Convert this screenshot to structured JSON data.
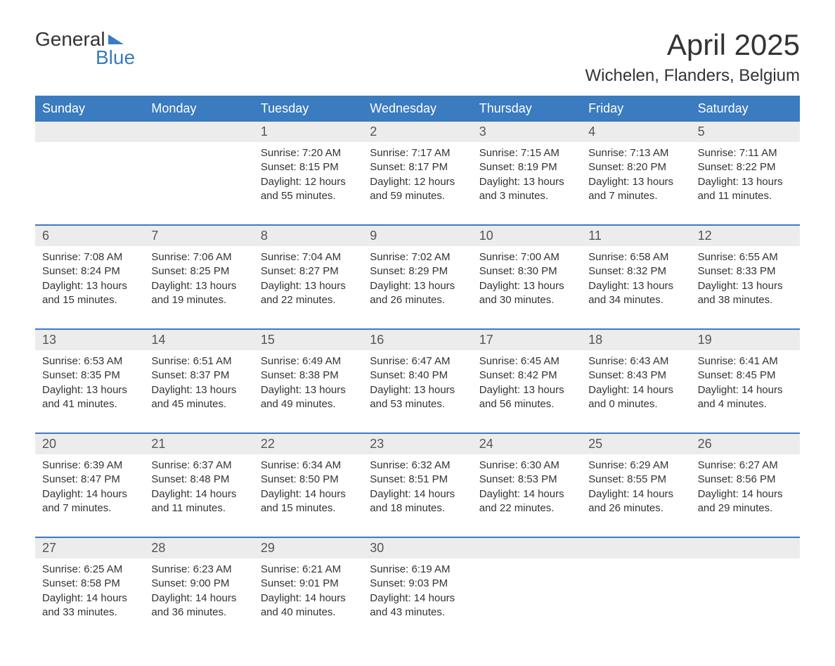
{
  "logo": {
    "part1": "General",
    "part2": "Blue"
  },
  "title": "April 2025",
  "location": "Wichelen, Flanders, Belgium",
  "colors": {
    "header_bg": "#3b7bbf",
    "header_text": "#ffffff",
    "daynum_bg": "#ececec",
    "body_text": "#333333",
    "logo_blue": "#3b7bbf"
  },
  "layout": {
    "columns": 7,
    "title_fontsize": 42,
    "location_fontsize": 24,
    "header_fontsize": 18,
    "daynum_fontsize": 18,
    "cell_fontsize": 15
  },
  "day_headers": [
    "Sunday",
    "Monday",
    "Tuesday",
    "Wednesday",
    "Thursday",
    "Friday",
    "Saturday"
  ],
  "weeks": [
    {
      "nums": [
        "",
        "",
        "1",
        "2",
        "3",
        "4",
        "5"
      ],
      "cells": [
        {},
        {},
        {
          "sunrise": "Sunrise: 7:20 AM",
          "sunset": "Sunset: 8:15 PM",
          "daylight": "Daylight: 12 hours and 55 minutes."
        },
        {
          "sunrise": "Sunrise: 7:17 AM",
          "sunset": "Sunset: 8:17 PM",
          "daylight": "Daylight: 12 hours and 59 minutes."
        },
        {
          "sunrise": "Sunrise: 7:15 AM",
          "sunset": "Sunset: 8:19 PM",
          "daylight": "Daylight: 13 hours and 3 minutes."
        },
        {
          "sunrise": "Sunrise: 7:13 AM",
          "sunset": "Sunset: 8:20 PM",
          "daylight": "Daylight: 13 hours and 7 minutes."
        },
        {
          "sunrise": "Sunrise: 7:11 AM",
          "sunset": "Sunset: 8:22 PM",
          "daylight": "Daylight: 13 hours and 11 minutes."
        }
      ]
    },
    {
      "nums": [
        "6",
        "7",
        "8",
        "9",
        "10",
        "11",
        "12"
      ],
      "cells": [
        {
          "sunrise": "Sunrise: 7:08 AM",
          "sunset": "Sunset: 8:24 PM",
          "daylight": "Daylight: 13 hours and 15 minutes."
        },
        {
          "sunrise": "Sunrise: 7:06 AM",
          "sunset": "Sunset: 8:25 PM",
          "daylight": "Daylight: 13 hours and 19 minutes."
        },
        {
          "sunrise": "Sunrise: 7:04 AM",
          "sunset": "Sunset: 8:27 PM",
          "daylight": "Daylight: 13 hours and 22 minutes."
        },
        {
          "sunrise": "Sunrise: 7:02 AM",
          "sunset": "Sunset: 8:29 PM",
          "daylight": "Daylight: 13 hours and 26 minutes."
        },
        {
          "sunrise": "Sunrise: 7:00 AM",
          "sunset": "Sunset: 8:30 PM",
          "daylight": "Daylight: 13 hours and 30 minutes."
        },
        {
          "sunrise": "Sunrise: 6:58 AM",
          "sunset": "Sunset: 8:32 PM",
          "daylight": "Daylight: 13 hours and 34 minutes."
        },
        {
          "sunrise": "Sunrise: 6:55 AM",
          "sunset": "Sunset: 8:33 PM",
          "daylight": "Daylight: 13 hours and 38 minutes."
        }
      ]
    },
    {
      "nums": [
        "13",
        "14",
        "15",
        "16",
        "17",
        "18",
        "19"
      ],
      "cells": [
        {
          "sunrise": "Sunrise: 6:53 AM",
          "sunset": "Sunset: 8:35 PM",
          "daylight": "Daylight: 13 hours and 41 minutes."
        },
        {
          "sunrise": "Sunrise: 6:51 AM",
          "sunset": "Sunset: 8:37 PM",
          "daylight": "Daylight: 13 hours and 45 minutes."
        },
        {
          "sunrise": "Sunrise: 6:49 AM",
          "sunset": "Sunset: 8:38 PM",
          "daylight": "Daylight: 13 hours and 49 minutes."
        },
        {
          "sunrise": "Sunrise: 6:47 AM",
          "sunset": "Sunset: 8:40 PM",
          "daylight": "Daylight: 13 hours and 53 minutes."
        },
        {
          "sunrise": "Sunrise: 6:45 AM",
          "sunset": "Sunset: 8:42 PM",
          "daylight": "Daylight: 13 hours and 56 minutes."
        },
        {
          "sunrise": "Sunrise: 6:43 AM",
          "sunset": "Sunset: 8:43 PM",
          "daylight": "Daylight: 14 hours and 0 minutes."
        },
        {
          "sunrise": "Sunrise: 6:41 AM",
          "sunset": "Sunset: 8:45 PM",
          "daylight": "Daylight: 14 hours and 4 minutes."
        }
      ]
    },
    {
      "nums": [
        "20",
        "21",
        "22",
        "23",
        "24",
        "25",
        "26"
      ],
      "cells": [
        {
          "sunrise": "Sunrise: 6:39 AM",
          "sunset": "Sunset: 8:47 PM",
          "daylight": "Daylight: 14 hours and 7 minutes."
        },
        {
          "sunrise": "Sunrise: 6:37 AM",
          "sunset": "Sunset: 8:48 PM",
          "daylight": "Daylight: 14 hours and 11 minutes."
        },
        {
          "sunrise": "Sunrise: 6:34 AM",
          "sunset": "Sunset: 8:50 PM",
          "daylight": "Daylight: 14 hours and 15 minutes."
        },
        {
          "sunrise": "Sunrise: 6:32 AM",
          "sunset": "Sunset: 8:51 PM",
          "daylight": "Daylight: 14 hours and 18 minutes."
        },
        {
          "sunrise": "Sunrise: 6:30 AM",
          "sunset": "Sunset: 8:53 PM",
          "daylight": "Daylight: 14 hours and 22 minutes."
        },
        {
          "sunrise": "Sunrise: 6:29 AM",
          "sunset": "Sunset: 8:55 PM",
          "daylight": "Daylight: 14 hours and 26 minutes."
        },
        {
          "sunrise": "Sunrise: 6:27 AM",
          "sunset": "Sunset: 8:56 PM",
          "daylight": "Daylight: 14 hours and 29 minutes."
        }
      ]
    },
    {
      "nums": [
        "27",
        "28",
        "29",
        "30",
        "",
        "",
        ""
      ],
      "cells": [
        {
          "sunrise": "Sunrise: 6:25 AM",
          "sunset": "Sunset: 8:58 PM",
          "daylight": "Daylight: 14 hours and 33 minutes."
        },
        {
          "sunrise": "Sunrise: 6:23 AM",
          "sunset": "Sunset: 9:00 PM",
          "daylight": "Daylight: 14 hours and 36 minutes."
        },
        {
          "sunrise": "Sunrise: 6:21 AM",
          "sunset": "Sunset: 9:01 PM",
          "daylight": "Daylight: 14 hours and 40 minutes."
        },
        {
          "sunrise": "Sunrise: 6:19 AM",
          "sunset": "Sunset: 9:03 PM",
          "daylight": "Daylight: 14 hours and 43 minutes."
        },
        {},
        {},
        {}
      ]
    }
  ]
}
